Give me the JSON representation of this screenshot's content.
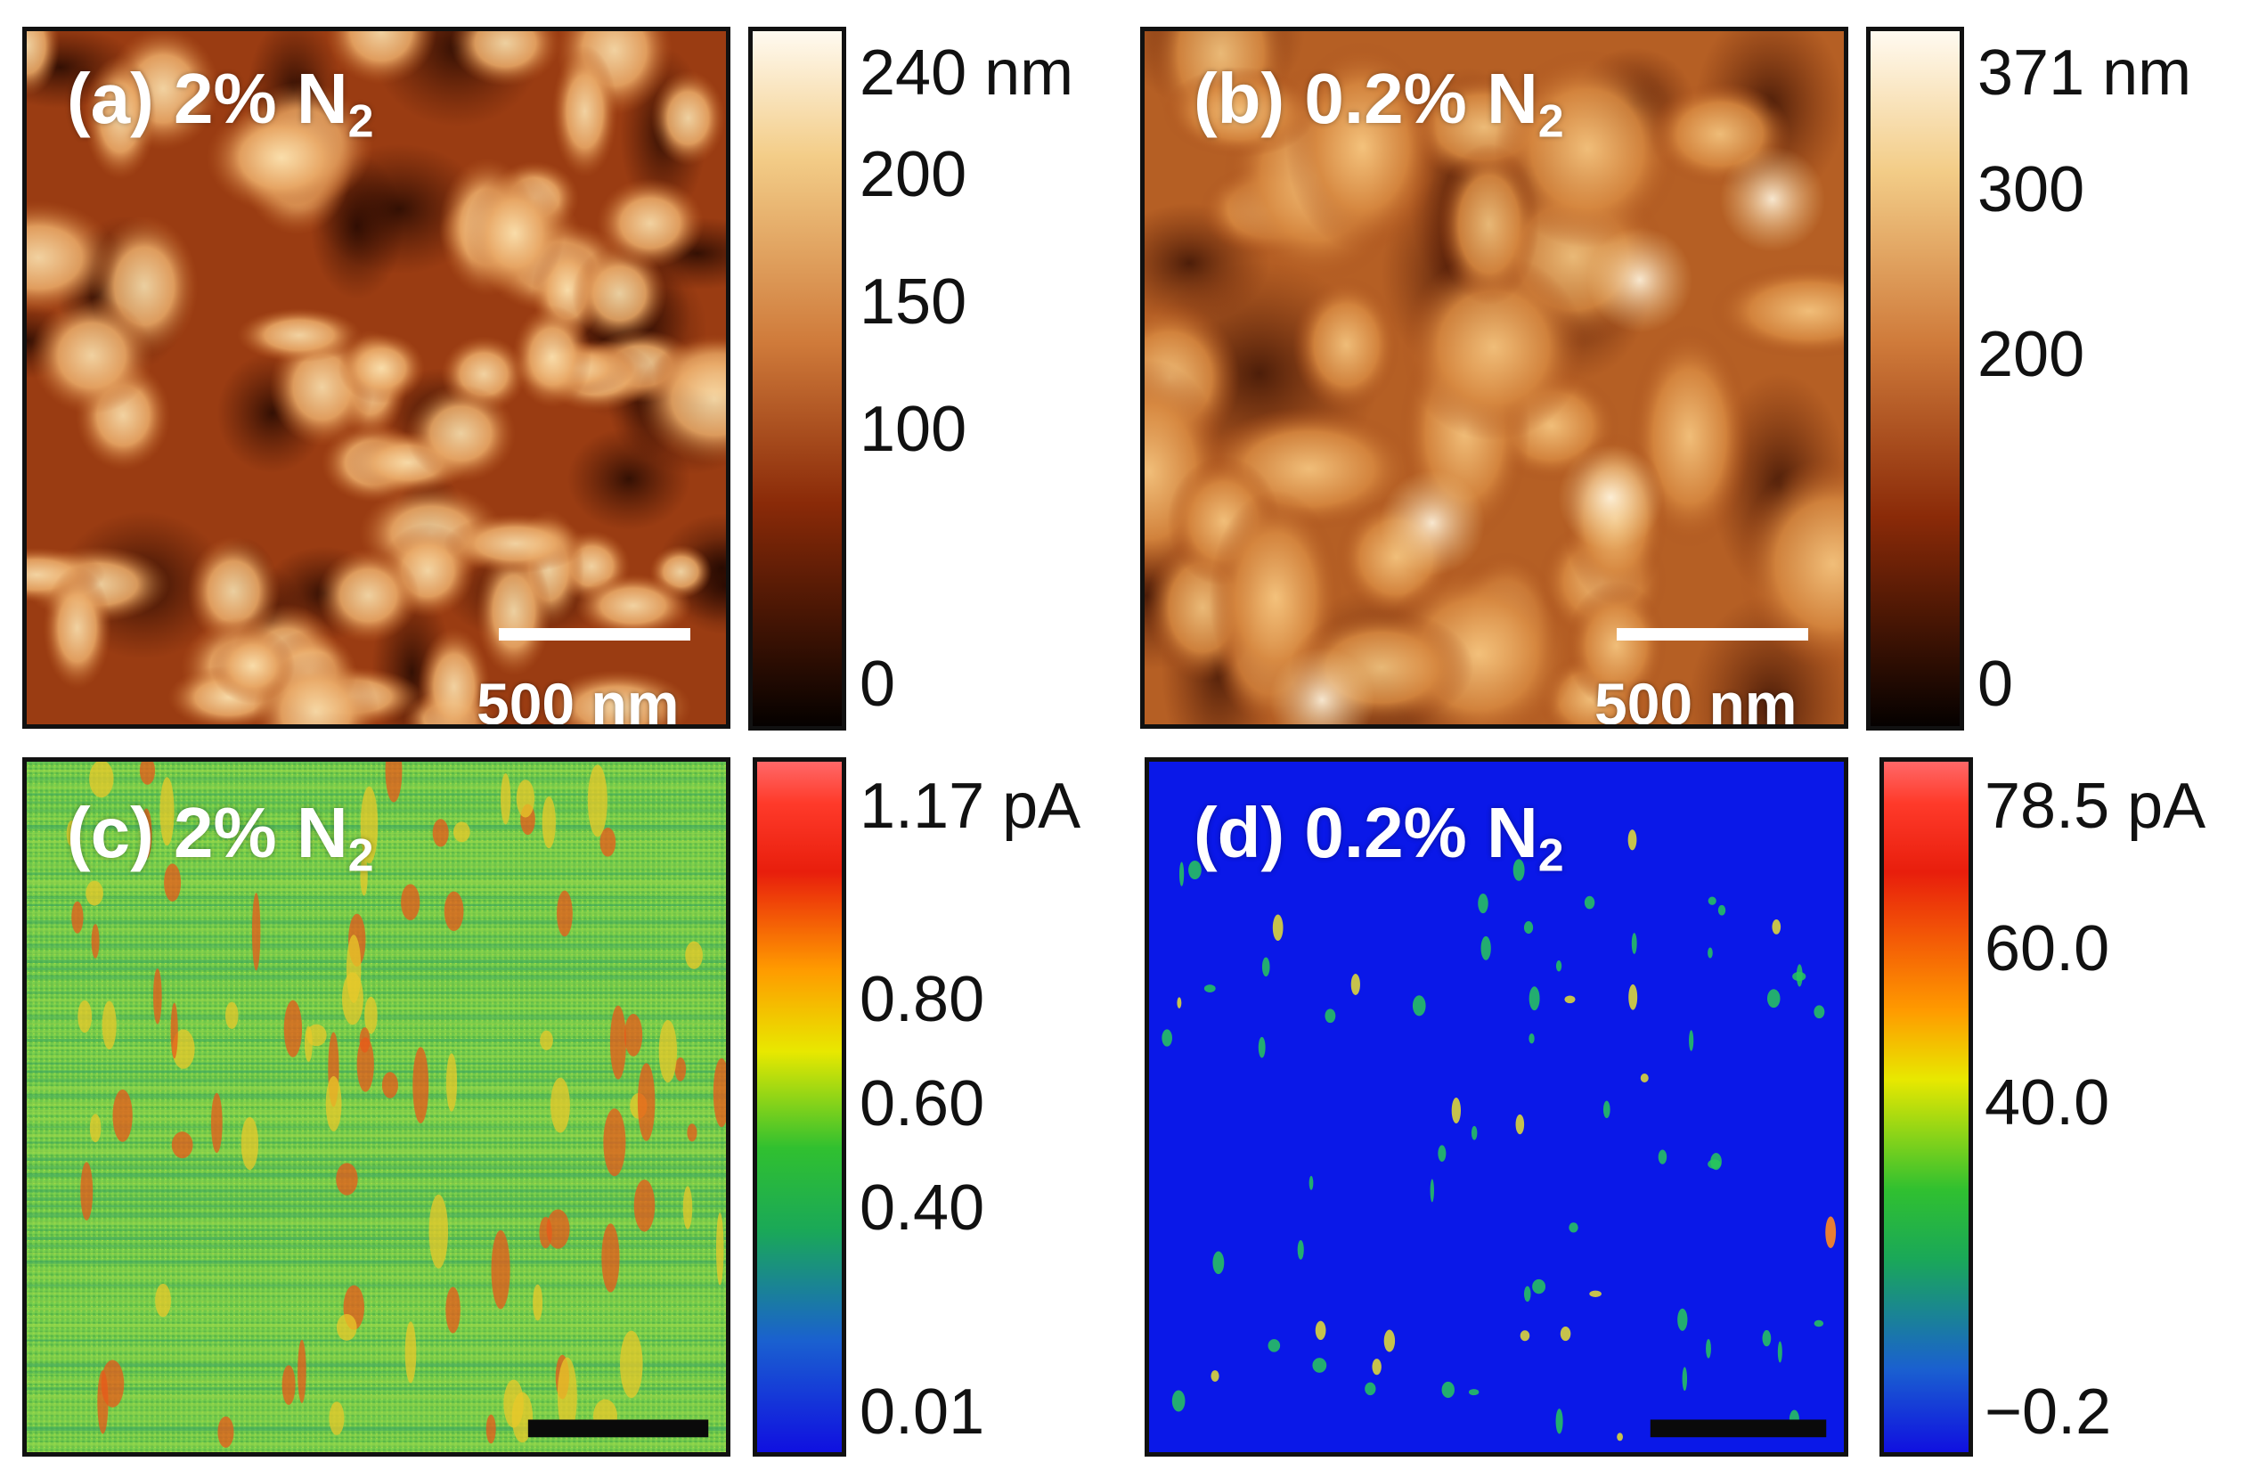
{
  "panels": {
    "a": {
      "tag": "(a)",
      "percent": "2%",
      "gas": "N",
      "gas_sub": "2",
      "scale": "500 nm",
      "kind": "topography"
    },
    "b": {
      "tag": "(b)",
      "percent": "0.2%",
      "gas": "N",
      "gas_sub": "2",
      "scale": "500 nm",
      "kind": "topography"
    },
    "c": {
      "tag": "(c)",
      "percent": "2%",
      "gas": "N",
      "gas_sub": "2",
      "kind": "current"
    },
    "d": {
      "tag": "(d)",
      "percent": "0.2%",
      "gas": "N",
      "gas_sub": "2",
      "kind": "current"
    }
  },
  "colorbars": {
    "a": {
      "ticks": [
        {
          "label": "240 nm",
          "value": 240
        },
        {
          "label": "200",
          "value": 200
        },
        {
          "label": "150",
          "value": 150
        },
        {
          "label": "100",
          "value": 100
        },
        {
          "label": "0",
          "value": 0
        }
      ],
      "range": [
        0,
        240
      ]
    },
    "b": {
      "ticks": [
        {
          "label": "371 nm",
          "value": 371
        },
        {
          "label": "300",
          "value": 300
        },
        {
          "label": "200",
          "value": 200
        },
        {
          "label": "0",
          "value": 0
        }
      ],
      "range": [
        0,
        371
      ]
    },
    "c": {
      "ticks": [
        {
          "label": "1.17 pA",
          "value": 1.17
        },
        {
          "label": "0.80",
          "value": 0.8
        },
        {
          "label": "0.60",
          "value": 0.6
        },
        {
          "label": "0.40",
          "value": 0.4
        },
        {
          "label": "0.01",
          "value": 0.01
        }
      ],
      "range": [
        0.01,
        1.17
      ]
    },
    "d": {
      "ticks": [
        {
          "label": "78.5 pA",
          "value": 78.5
        },
        {
          "label": "60.0",
          "value": 60.0
        },
        {
          "label": "40.0",
          "value": 40.0
        },
        {
          "label": "−0.2",
          "value": -0.2
        }
      ],
      "range": [
        -0.2,
        78.5
      ]
    }
  },
  "colors": {
    "topo_gradient": [
      "#fffaf0",
      "#f3cd88",
      "#cf7a3a",
      "#8a2a08",
      "#050100"
    ],
    "current_gradient": [
      "#ff5a5a",
      "#e81e0c",
      "#ffa800",
      "#e8e800",
      "#20c020",
      "#1a60d0",
      "#1010e0"
    ],
    "map_c_base": "#6fc84a",
    "map_d_base": "#0a18e8"
  }
}
